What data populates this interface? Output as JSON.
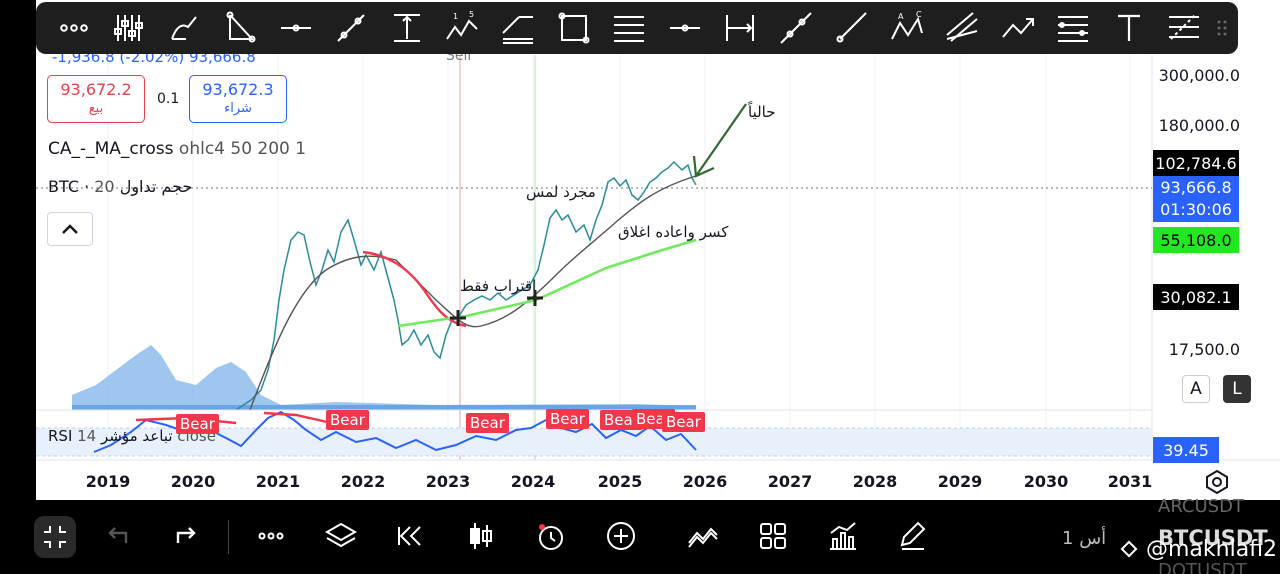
{
  "header": {
    "price_change": "-1,936.8 (-2.02%) 93,666.8",
    "sell_hint": "Sell",
    "sell": {
      "price": "93,672.2",
      "label": "بيع"
    },
    "spread": "0.1",
    "buy": {
      "price": "93,672.3",
      "label": "شراء"
    }
  },
  "indicators": {
    "ma": {
      "name": "CA_-_MA_cross",
      "params": "ohlc4 50 200 1"
    },
    "vol": {
      "name": "BTC · حجم تداول",
      "params": "20"
    },
    "rsi": {
      "name": "RSI تباعد مؤشر",
      "params": "14 close"
    }
  },
  "price_axis": {
    "labels": [
      "300,000.0",
      "180,000.0",
      "55,108.0",
      "17,500.0"
    ],
    "tag_high": "102,784.6",
    "tag_last": "93,666.8",
    "tag_countdown": "01:30:06",
    "tag_ma": "55,108.0",
    "tag_low": "30,082.1",
    "tag_rsi": "39.45"
  },
  "time_axis": [
    "2019",
    "2020",
    "2021",
    "2022",
    "2023",
    "2024",
    "2025",
    "2026",
    "2027",
    "2028",
    "2029",
    "2030",
    "2031"
  ],
  "scale_modes": {
    "auto": "A",
    "log": "L"
  },
  "rsi_signals": [
    "Bear",
    "Bear",
    "Bear",
    "Bear",
    "Bear",
    "Bear",
    "Bear"
  ],
  "annotations": {
    "now": "حالياً",
    "touch": "مجرد لمس",
    "break": "كسر واعاده اغلاق",
    "approach": "اقتراب فقط"
  },
  "bottom": {
    "interval": "1 أس",
    "symbol_prev": "ARCUSDT",
    "symbol": "BTCUSDT",
    "symbol_next": "DOTUSDT",
    "watermark": "@makhlafi2"
  },
  "toolbar_icons": [
    "more-icon",
    "indicator-icon",
    "brush-icon",
    "triangle-icon",
    "horizontal-line-icon",
    "trend-line-icon",
    "vertical-range-icon",
    "elliott-wave-icon",
    "parallel-channel-icon",
    "rectangle-icon",
    "fib-lines-icon",
    "horizontal-ray-icon",
    "date-range-icon",
    "extended-line-icon",
    "ray-icon",
    "abc-pattern-icon",
    "pitchfork-icon",
    "arrow-icon",
    "lines-stack-icon",
    "text-icon",
    "fib-extension-icon"
  ],
  "colors": {
    "bull": "#26a69a",
    "bear": "#f2364c",
    "ma_fast": "#22e822",
    "accent": "#2962ff",
    "price_blue": "#4a90d9"
  }
}
